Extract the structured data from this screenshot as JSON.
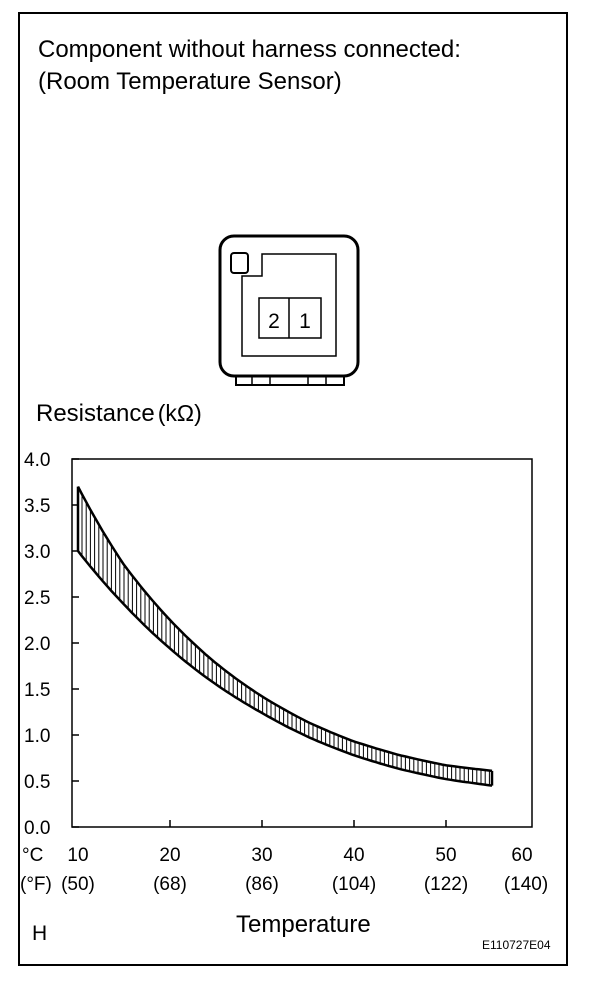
{
  "header": {
    "line1": "Component without harness connected:",
    "line2": "(Room Temperature Sensor)"
  },
  "connector": {
    "pins": [
      "2",
      "1"
    ]
  },
  "footer": {
    "code": "H",
    "figure_id": "E110727E04"
  },
  "chart_data": {
    "type": "area",
    "ylabel_main": "Resistance",
    "ylabel_unit": "(kΩ)",
    "xlabel": "Temperature",
    "x_unit_c": "°C",
    "x_unit_f": "(°F)",
    "xlim": [
      10,
      60
    ],
    "ylim": [
      0.0,
      4.0
    ],
    "grid": false,
    "y_ticks": [
      "0.0",
      "0.5",
      "1.0",
      "1.5",
      "2.0",
      "2.5",
      "3.0",
      "3.5",
      "4.0"
    ],
    "x_ticks": [
      {
        "c": "10",
        "f": "(50)"
      },
      {
        "c": "20",
        "f": "(68)"
      },
      {
        "c": "30",
        "f": "(86)"
      },
      {
        "c": "40",
        "f": "(104)"
      },
      {
        "c": "50",
        "f": "(122)"
      },
      {
        "c": "60",
        "f": "(140)"
      }
    ],
    "series": [
      {
        "x": [
          10,
          15,
          20,
          25,
          30,
          35,
          40,
          45,
          50,
          55
        ],
        "y": [
          3.7,
          2.85,
          2.25,
          1.78,
          1.42,
          1.14,
          0.93,
          0.78,
          0.67,
          0.61
        ]
      },
      {
        "x": [
          10,
          15,
          20,
          25,
          30,
          35,
          40,
          45,
          50,
          55
        ],
        "y": [
          3.0,
          2.42,
          1.94,
          1.55,
          1.24,
          0.98,
          0.78,
          0.63,
          0.52,
          0.45
        ]
      }
    ]
  }
}
